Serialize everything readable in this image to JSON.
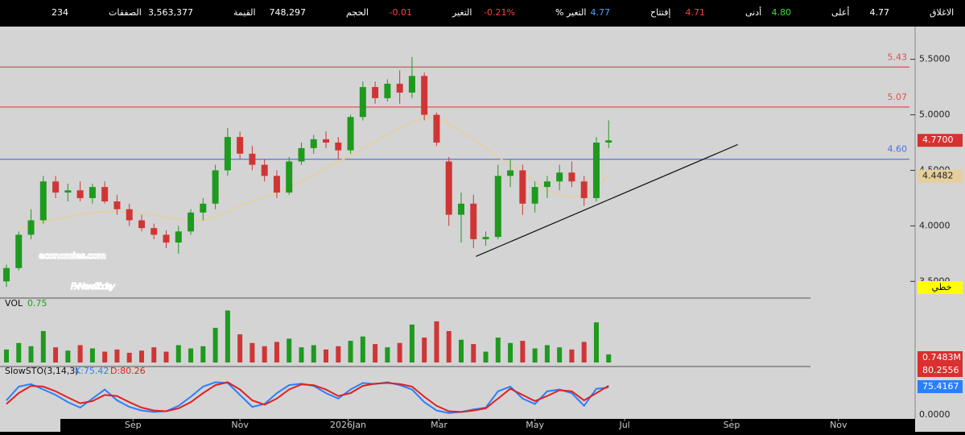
{
  "header": {
    "items": [
      {
        "label": "الاغلاق",
        "value": "4.77",
        "color": "#ffffff"
      },
      {
        "label": "أعلى",
        "value": "4.80",
        "color": "#3ddc3d"
      },
      {
        "label": "أدنى",
        "value": "4.71",
        "color": "#ff4040"
      },
      {
        "label": "إفتتاح",
        "value": "4.77",
        "color": "#4aa8ff"
      },
      {
        "label": "التغير %",
        "value": "-0.21%",
        "color": "#ff4040"
      },
      {
        "label": "التغير",
        "value": "-0.01",
        "color": "#ff4040"
      },
      {
        "label": "الحجم",
        "value": "748,297",
        "color": "#ffffff"
      },
      {
        "label": "القيمة",
        "value": "3,563,377",
        "color": "#ffffff"
      },
      {
        "label": "الصفقات",
        "value": "234",
        "color": "#ffffff"
      }
    ]
  },
  "chart_data": [
    {
      "type": "candlestick",
      "up_color": "#1e9a1e",
      "down_color": "#d03535",
      "open": [
        3.5,
        3.62,
        3.92,
        4.05,
        4.4,
        4.3,
        4.32,
        4.25,
        4.35,
        4.22,
        4.15,
        4.05,
        3.98,
        3.92,
        3.85,
        3.95,
        4.12,
        4.2,
        4.5,
        4.8,
        4.65,
        4.55,
        4.45,
        4.3,
        4.58,
        4.7,
        4.78,
        4.75,
        4.68,
        4.98,
        5.25,
        5.15,
        5.28,
        5.2,
        5.35,
        5.0,
        4.58,
        4.1,
        4.2,
        3.88,
        3.9,
        4.45,
        4.5,
        4.2,
        4.35,
        4.4,
        4.48,
        4.4,
        4.25,
        4.75
      ],
      "high": [
        3.65,
        3.95,
        4.15,
        4.45,
        4.45,
        4.38,
        4.4,
        4.38,
        4.4,
        4.28,
        4.2,
        4.1,
        4.02,
        3.96,
        4.0,
        4.15,
        4.25,
        4.55,
        4.88,
        4.85,
        4.72,
        4.6,
        4.5,
        4.62,
        4.75,
        4.82,
        4.85,
        4.8,
        5.0,
        5.3,
        5.3,
        5.32,
        5.4,
        5.52,
        5.38,
        5.02,
        4.62,
        4.3,
        4.28,
        3.95,
        4.55,
        4.6,
        4.55,
        4.4,
        4.45,
        4.55,
        4.58,
        4.45,
        4.8,
        4.95
      ],
      "low": [
        3.45,
        3.6,
        3.88,
        4.02,
        4.25,
        4.22,
        4.22,
        4.2,
        4.2,
        4.1,
        4.0,
        3.95,
        3.88,
        3.8,
        3.75,
        3.92,
        4.05,
        4.15,
        4.45,
        4.6,
        4.5,
        4.4,
        4.25,
        4.28,
        4.55,
        4.65,
        4.7,
        4.6,
        4.65,
        4.95,
        5.1,
        5.12,
        5.1,
        5.15,
        4.95,
        4.72,
        4.0,
        3.85,
        3.8,
        3.82,
        3.88,
        4.35,
        4.1,
        4.12,
        4.25,
        4.32,
        4.35,
        4.18,
        4.22,
        4.7
      ],
      "close": [
        3.62,
        3.92,
        4.05,
        4.4,
        4.3,
        4.32,
        4.25,
        4.35,
        4.22,
        4.15,
        4.05,
        3.98,
        3.92,
        3.85,
        3.95,
        4.12,
        4.2,
        4.5,
        4.8,
        4.65,
        4.55,
        4.45,
        4.3,
        4.58,
        4.7,
        4.78,
        4.75,
        4.68,
        4.98,
        5.25,
        5.15,
        5.28,
        5.2,
        5.35,
        5.0,
        4.75,
        4.1,
        4.2,
        3.88,
        3.9,
        4.45,
        4.5,
        4.2,
        4.35,
        4.4,
        4.48,
        4.4,
        4.25,
        4.75,
        4.77
      ],
      "ma": {
        "color": "#e6cf9c",
        "values": [
          null,
          3.98,
          4.0,
          4.03,
          4.06,
          4.08,
          4.1,
          4.12,
          4.13,
          4.13,
          4.12,
          4.11,
          4.1,
          4.08,
          4.06,
          4.05,
          4.05,
          4.08,
          4.13,
          4.18,
          4.22,
          4.26,
          4.3,
          4.35,
          4.4,
          4.46,
          4.52,
          4.58,
          4.63,
          4.7,
          4.76,
          4.82,
          4.88,
          4.93,
          4.98,
          4.98,
          4.92,
          4.85,
          4.78,
          4.7,
          4.62,
          4.55,
          4.48,
          4.4,
          4.32,
          4.28,
          4.26,
          4.28,
          4.36,
          4.4482
        ]
      },
      "xlim": [
        0,
        74
      ],
      "xticks": [
        {
          "value": 10.3,
          "label": "Sep"
        },
        {
          "value": 19.0,
          "label": "Nov"
        },
        {
          "value": 27.8,
          "label": "2026Jan"
        },
        {
          "value": 35.2,
          "label": "Mar"
        },
        {
          "value": 43.0,
          "label": "May"
        },
        {
          "value": 50.3,
          "label": "Jul"
        },
        {
          "value": 59.0,
          "label": "Sep"
        },
        {
          "value": 67.7,
          "label": "Nov"
        }
      ],
      "ylim": [
        3.35,
        5.78
      ],
      "yticks": [
        {
          "value": 3.5,
          "label": "3.5000"
        },
        {
          "value": 4,
          "label": "4.0000"
        },
        {
          "value": 4.5,
          "label": "4.5000"
        },
        {
          "value": 5,
          "label": "5.0000"
        },
        {
          "value": 5.5,
          "label": "5.5000"
        }
      ],
      "levels": [
        {
          "value": 5.43,
          "label": "5.43",
          "color": "#e05050"
        },
        {
          "value": 5.07,
          "label": "5.07",
          "color": "#e05050"
        },
        {
          "value": 4.6,
          "label": "4.60",
          "color": "#4a6fe0"
        }
      ],
      "last_price": {
        "value": 4.77,
        "label": "4.7700",
        "color": "#d93030"
      },
      "ma_last": {
        "value": 4.4482,
        "label": "4.4482",
        "color": "#e6cf9c"
      },
      "trendline": {
        "x": [
          38.2,
          59.5
        ],
        "y": [
          3.725,
          4.732
        ]
      },
      "watermark": [
        "economies.com",
        "FxNewsToday"
      ],
      "button": "خطي"
    },
    {
      "type": "bar",
      "title": "VOL",
      "subtitle": "0.75",
      "ylim": [
        0,
        5.5
      ],
      "values": [
        1.2,
        1.8,
        1.5,
        2.9,
        1.4,
        1.1,
        1.6,
        1.3,
        1.0,
        1.2,
        0.9,
        1.1,
        1.4,
        1.0,
        1.6,
        1.3,
        1.5,
        3.2,
        4.8,
        2.6,
        1.8,
        1.5,
        1.9,
        2.2,
        1.4,
        1.6,
        1.2,
        1.5,
        2.0,
        2.4,
        1.7,
        1.4,
        1.8,
        3.5,
        2.3,
        3.8,
        2.9,
        2.1,
        1.7,
        1.0,
        2.3,
        1.8,
        2.0,
        1.3,
        1.6,
        1.4,
        1.2,
        1.9,
        3.7,
        0.7483
      ],
      "last_label": {
        "value": 0.7483,
        "label": "0.7483M",
        "color": "#d93030"
      }
    },
    {
      "type": "line",
      "title": "SlowSTO(3,14,3)",
      "ylim": [
        0,
        100
      ],
      "yticks": [
        {
          "value": 0,
          "label": "0.0000"
        }
      ],
      "series": [
        {
          "name": "K:75.42",
          "color": "#2a7fff",
          "values": [
            40,
            78,
            85,
            70,
            55,
            35,
            20,
            45,
            70,
            40,
            22,
            12,
            8,
            10,
            25,
            50,
            78,
            90,
            88,
            55,
            22,
            30,
            60,
            82,
            86,
            80,
            60,
            45,
            70,
            88,
            85,
            90,
            82,
            70,
            35,
            12,
            5,
            8,
            15,
            20,
            65,
            78,
            45,
            30,
            65,
            70,
            60,
            25,
            72,
            75.42
          ]
        },
        {
          "name": "D:80.26",
          "color": "#e02020",
          "values": [
            30,
            60,
            80,
            78,
            65,
            48,
            32,
            38,
            55,
            52,
            35,
            20,
            12,
            10,
            18,
            35,
            60,
            82,
            90,
            70,
            40,
            28,
            45,
            70,
            84,
            82,
            70,
            52,
            60,
            80,
            86,
            88,
            85,
            78,
            50,
            25,
            10,
            8,
            12,
            18,
            45,
            72,
            55,
            38,
            52,
            68,
            65,
            40,
            60,
            80.26
          ]
        }
      ],
      "end_labels": [
        {
          "value": 80.2556,
          "label": "80.2556",
          "color": "#d93030"
        },
        {
          "value": 75.4167,
          "label": "75.4167",
          "color": "#2a7fff"
        }
      ]
    }
  ]
}
